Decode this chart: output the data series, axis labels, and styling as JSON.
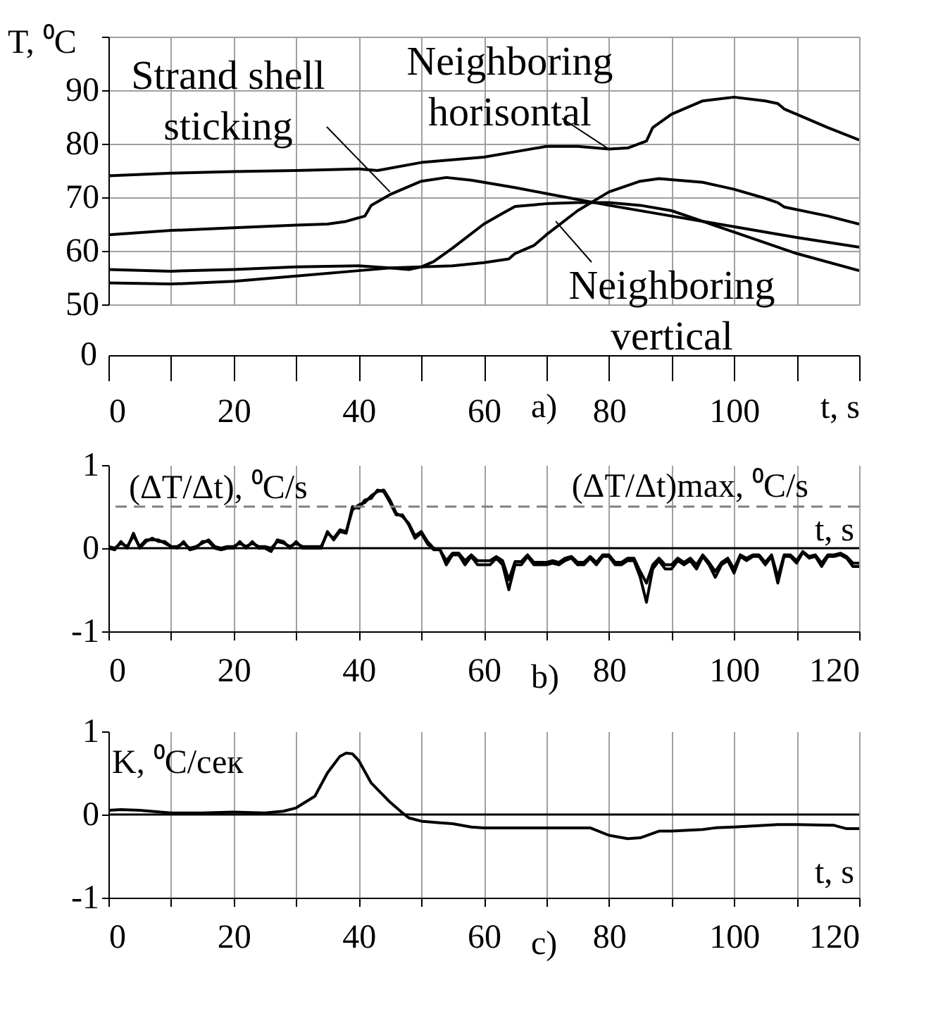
{
  "chart_data": [
    {
      "type": "line",
      "ylabel": "T, ⁰C",
      "xlabel": "t, s",
      "grid": true,
      "xlim": [
        0,
        120
      ],
      "xticks": [
        0,
        {
          "value": 10,
          "label": null
        },
        20,
        {
          "value": 30,
          "label": null
        },
        40,
        {
          "value": 50,
          "label": null
        },
        60,
        {
          "value": 70,
          "label": null
        },
        80,
        {
          "value": 90,
          "label": null
        },
        100,
        {
          "value": 110,
          "label": null
        },
        {
          "value": 120,
          "label": null
        }
      ],
      "ylim": [
        50,
        100
      ],
      "yticks": [
        50,
        60,
        70,
        80,
        90,
        {
          "value": 100,
          "label": null
        }
      ],
      "series": [
        {
          "color": "#000000",
          "x": [
            0,
            10,
            20,
            30,
            40,
            43,
            50,
            60,
            65,
            70,
            75,
            80,
            83,
            86,
            87,
            90,
            95,
            100,
            105,
            107,
            108,
            110,
            115,
            120
          ],
          "values": [
            74,
            74.5,
            74.8,
            75,
            75.3,
            75,
            76.5,
            77.5,
            78.5,
            79.5,
            79.5,
            79,
            79.2,
            80.5,
            83,
            85.5,
            88,
            88.7,
            88,
            87.5,
            86.5,
            85.5,
            83,
            80.7
          ]
        },
        {
          "color": "#000000",
          "x": [
            0,
            10,
            20,
            30,
            35,
            38,
            41,
            42,
            45,
            50,
            54,
            58,
            65,
            70,
            80,
            90,
            100,
            110,
            120
          ],
          "values": [
            63,
            63.8,
            64.3,
            64.8,
            65,
            65.5,
            66.5,
            68.5,
            70.5,
            73,
            73.7,
            73.2,
            71.8,
            70.7,
            68.5,
            66.5,
            64.5,
            62.5,
            60.7
          ]
        },
        {
          "color": "#000000",
          "x": [
            0,
            10,
            20,
            30,
            40,
            45,
            48,
            50,
            52,
            55,
            60,
            63,
            65,
            70,
            75,
            80,
            85,
            90,
            95,
            100,
            105,
            110,
            120
          ],
          "values": [
            56.5,
            56.2,
            56.5,
            57,
            57.2,
            56.8,
            56.5,
            57,
            58,
            60.5,
            65,
            67,
            68.3,
            68.8,
            69,
            69,
            68.5,
            67.5,
            65.5,
            63.5,
            61.5,
            59.5,
            56.3
          ]
        },
        {
          "color": "#000000",
          "x": [
            0,
            10,
            20,
            30,
            40,
            45,
            50,
            55,
            60,
            64,
            65,
            68,
            70,
            75,
            80,
            85,
            88,
            95,
            100,
            105,
            107,
            108,
            115,
            120
          ],
          "values": [
            54,
            53.8,
            54.3,
            55.3,
            56.3,
            56.8,
            57,
            57.2,
            57.8,
            58.5,
            59.5,
            61,
            63,
            67.5,
            71,
            73,
            73.5,
            72.8,
            71.5,
            69.8,
            69,
            68.2,
            66.5,
            65
          ]
        }
      ],
      "annotations": [
        {
          "text": "Strand shell sticking",
          "x": 45,
          "y": 71
        },
        {
          "text": "Neighboring horisontal",
          "x": 80,
          "y": 79
        },
        {
          "text": "Neighboring vertical",
          "x": 71.5,
          "y": 65.5
        },
        "0",
        "a)"
      ]
    },
    {
      "type": "line",
      "ylabel": "(ΔT/Δt), ⁰C/s",
      "xlabel": "t, s",
      "grid": "x",
      "xlim": [
        0,
        120
      ],
      "xticks": [
        0,
        {
          "value": 10,
          "label": null
        },
        20,
        {
          "value": 30,
          "label": null
        },
        40,
        {
          "value": 50,
          "label": null
        },
        60,
        {
          "value": 70,
          "label": null
        },
        80,
        {
          "value": 90,
          "label": null
        },
        100,
        {
          "value": 110,
          "label": null
        },
        120
      ],
      "ylim": [
        -1,
        1
      ],
      "yticks": [
        -1,
        0,
        1
      ],
      "x": [
        0,
        1,
        2,
        3,
        4,
        5,
        6,
        7,
        8,
        9,
        10,
        11,
        12,
        13,
        14,
        15,
        16,
        17,
        18,
        19,
        20,
        21,
        22,
        23,
        24,
        25,
        26,
        27,
        28,
        29,
        30,
        31,
        32,
        33,
        34,
        35,
        36,
        37,
        38,
        39,
        40,
        41,
        42,
        43,
        44,
        45,
        46,
        47,
        48,
        49,
        50,
        51,
        52,
        53,
        54,
        55,
        56,
        57,
        58,
        59,
        60,
        61,
        62,
        63,
        64,
        65,
        66,
        67,
        68,
        69,
        70,
        71,
        72,
        73,
        74,
        75,
        76,
        77,
        78,
        79,
        80,
        81,
        82,
        83,
        84,
        85,
        86,
        87,
        88,
        89,
        90,
        91,
        92,
        93,
        94,
        95,
        96,
        97,
        98,
        99,
        100,
        101,
        102,
        103,
        104,
        105,
        106,
        107,
        108,
        109,
        110,
        111,
        112,
        113,
        114,
        115,
        116,
        117,
        118,
        119,
        120
      ],
      "series": [
        {
          "color": "#000000",
          "values": [
            0,
            -0.02,
            0.08,
            0,
            0.18,
            0,
            0.08,
            0.12,
            0.08,
            0.08,
            0.02,
            0,
            0.08,
            -0.02,
            0,
            0.08,
            0.08,
            0,
            -0.02,
            0,
            0,
            0.08,
            0,
            0.08,
            0,
            0,
            -0.04,
            0.1,
            0.08,
            0,
            0.08,
            0,
            0,
            0,
            0,
            0.2,
            0.1,
            0.2,
            0.18,
            0.5,
            0.48,
            0.58,
            0.6,
            0.7,
            0.68,
            0.55,
            0.4,
            0.4,
            0.28,
            0.12,
            0.18,
            0.05,
            -0.02,
            -0.02,
            -0.2,
            -0.08,
            -0.08,
            -0.2,
            -0.1,
            -0.2,
            -0.2,
            -0.2,
            -0.12,
            -0.2,
            -0.5,
            -0.2,
            -0.2,
            -0.1,
            -0.2,
            -0.2,
            -0.2,
            -0.18,
            -0.2,
            -0.15,
            -0.12,
            -0.2,
            -0.2,
            -0.12,
            -0.2,
            -0.1,
            -0.1,
            -0.2,
            -0.2,
            -0.15,
            -0.15,
            -0.35,
            -0.65,
            -0.25,
            -0.15,
            -0.25,
            -0.25,
            -0.15,
            -0.2,
            -0.15,
            -0.25,
            -0.1,
            -0.2,
            -0.35,
            -0.2,
            -0.15,
            -0.3,
            -0.1,
            -0.15,
            -0.1,
            -0.1,
            -0.2,
            -0.1,
            -0.42,
            -0.1,
            -0.1,
            -0.18,
            -0.05,
            -0.12,
            -0.1,
            -0.22,
            -0.1,
            -0.1,
            -0.08,
            -0.12,
            -0.22,
            -0.22
          ]
        },
        {
          "color": "#000000",
          "values": [
            0.02,
            0,
            0.06,
            0.02,
            0.15,
            0.02,
            0.1,
            0.1,
            0.1,
            0.06,
            0.02,
            0.02,
            0.06,
            0,
            0.02,
            0.06,
            0.1,
            0.02,
            0,
            0.02,
            0.02,
            0.06,
            0.02,
            0.06,
            0.02,
            0.02,
            0,
            0.08,
            0.06,
            0.02,
            0.06,
            0.02,
            0.02,
            0.02,
            0.02,
            0.18,
            0.12,
            0.22,
            0.2,
            0.46,
            0.52,
            0.55,
            0.63,
            0.68,
            0.7,
            0.58,
            0.42,
            0.38,
            0.3,
            0.15,
            0.2,
            0.08,
            0,
            -0.02,
            -0.15,
            -0.06,
            -0.06,
            -0.15,
            -0.08,
            -0.15,
            -0.15,
            -0.15,
            -0.1,
            -0.15,
            -0.38,
            -0.16,
            -0.16,
            -0.08,
            -0.17,
            -0.17,
            -0.17,
            -0.15,
            -0.17,
            -0.12,
            -0.1,
            -0.17,
            -0.17,
            -0.1,
            -0.17,
            -0.08,
            -0.08,
            -0.17,
            -0.17,
            -0.12,
            -0.12,
            -0.28,
            -0.42,
            -0.2,
            -0.12,
            -0.2,
            -0.2,
            -0.12,
            -0.17,
            -0.12,
            -0.2,
            -0.08,
            -0.17,
            -0.28,
            -0.17,
            -0.12,
            -0.25,
            -0.08,
            -0.12,
            -0.08,
            -0.08,
            -0.17,
            -0.08,
            -0.35,
            -0.08,
            -0.08,
            -0.15,
            -0.04,
            -0.1,
            -0.08,
            -0.18,
            -0.08,
            -0.08,
            -0.06,
            -0.1,
            -0.18,
            -0.18
          ]
        }
      ],
      "ref_lines": [
        {
          "axis": "y",
          "value": 0.5,
          "label": "(ΔT/Δt)max, ⁰C/s",
          "line_style": "dashed",
          "color": "#808080"
        },
        {
          "axis": "y",
          "value": 0,
          "color": "#000000"
        }
      ],
      "annotations": [
        "b)"
      ]
    },
    {
      "type": "line",
      "ylabel": "K, ⁰C/сек",
      "xlabel": "t, s",
      "grid": "x",
      "xlim": [
        0,
        120
      ],
      "xticks": [
        0,
        {
          "value": 10,
          "label": null
        },
        20,
        {
          "value": 30,
          "label": null
        },
        40,
        {
          "value": 50,
          "label": null
        },
        60,
        {
          "value": 70,
          "label": null
        },
        80,
        {
          "value": 90,
          "label": null
        },
        100,
        {
          "value": 110,
          "label": null
        },
        120
      ],
      "ylim": [
        -1,
        1
      ],
      "yticks": [
        -1,
        0,
        1
      ],
      "series": [
        {
          "color": "#000000",
          "x": [
            0,
            2,
            5,
            10,
            15,
            20,
            25,
            28,
            30,
            33,
            35,
            37,
            38,
            39,
            40,
            42,
            45,
            47,
            48,
            50,
            53,
            55,
            58,
            60,
            65,
            70,
            77,
            80,
            83,
            85,
            88,
            90,
            95,
            97,
            100,
            105,
            107,
            110,
            116,
            118,
            120
          ],
          "values": [
            0.05,
            0.06,
            0.05,
            0.02,
            0.02,
            0.03,
            0.02,
            0.04,
            0.08,
            0.22,
            0.5,
            0.7,
            0.74,
            0.73,
            0.65,
            0.38,
            0.15,
            0.02,
            -0.04,
            -0.08,
            -0.1,
            -0.11,
            -0.15,
            -0.16,
            -0.16,
            -0.16,
            -0.16,
            -0.25,
            -0.29,
            -0.28,
            -0.2,
            -0.2,
            -0.18,
            -0.16,
            -0.15,
            -0.13,
            -0.12,
            -0.12,
            -0.13,
            -0.17,
            -0.17
          ]
        }
      ],
      "ref_lines": [
        {
          "axis": "y",
          "value": 0,
          "color": "#000000"
        }
      ],
      "annotations": [
        "c)"
      ]
    }
  ]
}
